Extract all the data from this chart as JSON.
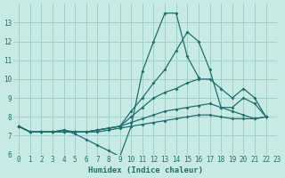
{
  "xlabel": "Humidex (Indice chaleur)",
  "xlim": [
    -0.5,
    23
  ],
  "ylim": [
    6,
    14
  ],
  "yticks": [
    6,
    7,
    8,
    9,
    10,
    11,
    12,
    13
  ],
  "xticks": [
    0,
    1,
    2,
    3,
    4,
    5,
    6,
    7,
    8,
    9,
    10,
    11,
    12,
    13,
    14,
    15,
    16,
    17,
    18,
    19,
    20,
    21,
    22,
    23
  ],
  "bg_color": "#c8eae4",
  "line_color": "#1e7070",
  "grid_color": "#a0d0cc",
  "lines": [
    {
      "x": [
        0,
        1,
        2,
        3,
        4,
        5,
        6,
        7,
        8,
        9,
        10,
        11,
        12,
        13,
        14,
        15,
        16
      ],
      "y": [
        7.5,
        7.2,
        7.2,
        7.2,
        7.3,
        7.1,
        6.8,
        6.5,
        6.2,
        5.9,
        7.5,
        10.4,
        12.0,
        13.5,
        13.5,
        11.2,
        10.1
      ]
    },
    {
      "x": [
        0,
        1,
        2,
        3,
        4,
        5,
        6,
        7,
        8,
        9,
        10,
        11,
        12,
        13,
        14,
        15,
        16,
        17,
        18,
        19,
        20,
        21,
        22
      ],
      "y": [
        7.5,
        7.2,
        7.2,
        7.2,
        7.3,
        7.2,
        7.2,
        7.3,
        7.4,
        7.5,
        8.3,
        9.0,
        9.8,
        10.5,
        11.5,
        12.5,
        12.0,
        10.5,
        8.5,
        8.5,
        9.0,
        8.7,
        8.0
      ]
    },
    {
      "x": [
        0,
        1,
        2,
        3,
        4,
        5,
        6,
        7,
        8,
        9,
        10,
        11,
        12,
        13,
        14,
        15,
        16,
        17,
        18,
        19,
        20,
        21,
        22
      ],
      "y": [
        7.5,
        7.2,
        7.2,
        7.2,
        7.2,
        7.2,
        7.2,
        7.3,
        7.4,
        7.5,
        8.0,
        8.5,
        9.0,
        9.3,
        9.5,
        9.8,
        10.0,
        10.0,
        9.5,
        9.0,
        9.5,
        9.0,
        8.0
      ]
    },
    {
      "x": [
        0,
        1,
        2,
        3,
        4,
        5,
        6,
        7,
        8,
        9,
        10,
        11,
        12,
        13,
        14,
        15,
        16,
        17,
        18,
        19,
        20,
        21,
        22
      ],
      "y": [
        7.5,
        7.2,
        7.2,
        7.2,
        7.2,
        7.2,
        7.2,
        7.3,
        7.4,
        7.5,
        7.7,
        7.9,
        8.1,
        8.3,
        8.4,
        8.5,
        8.6,
        8.7,
        8.5,
        8.3,
        8.1,
        7.9,
        8.0
      ]
    },
    {
      "x": [
        0,
        1,
        2,
        3,
        4,
        5,
        6,
        7,
        8,
        9,
        10,
        11,
        12,
        13,
        14,
        15,
        16,
        17,
        18,
        19,
        20,
        21,
        22
      ],
      "y": [
        7.5,
        7.2,
        7.2,
        7.2,
        7.2,
        7.2,
        7.2,
        7.2,
        7.3,
        7.4,
        7.5,
        7.6,
        7.7,
        7.8,
        7.9,
        8.0,
        8.1,
        8.1,
        8.0,
        7.9,
        7.9,
        7.9,
        8.0
      ]
    }
  ]
}
